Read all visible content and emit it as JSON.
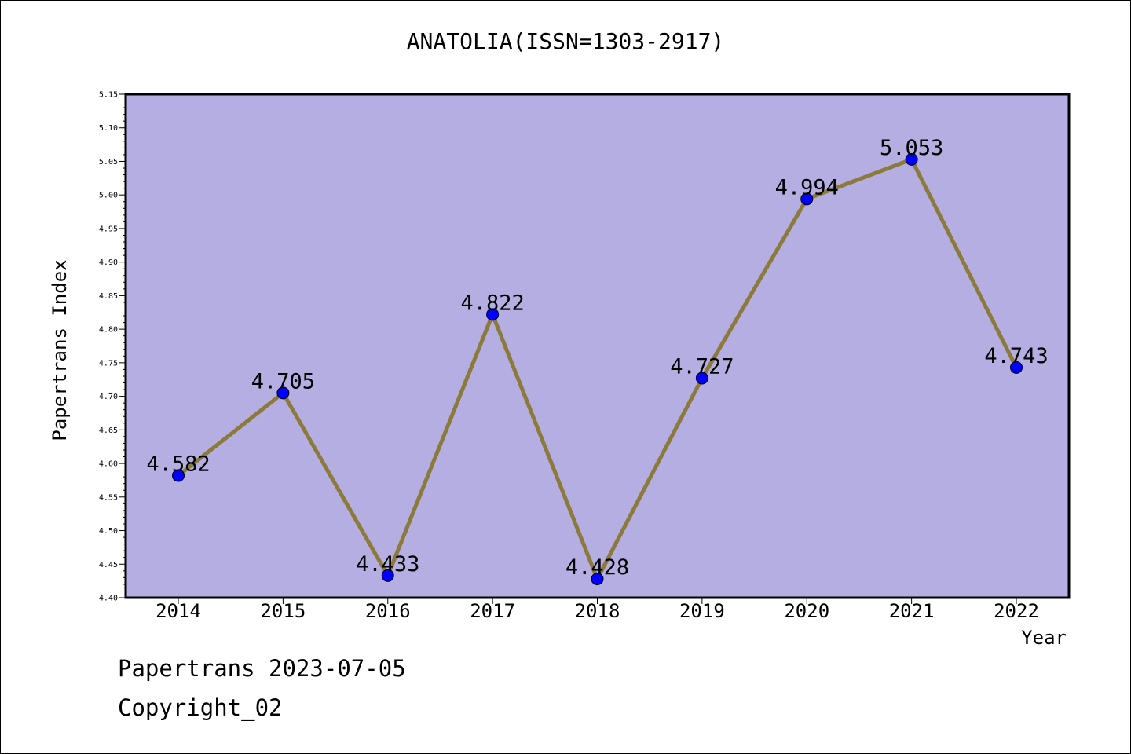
{
  "title": "ANATOLIA(ISSN=1303-2917)",
  "footer": {
    "line1": "Papertrans 2023-07-05",
    "line2": "Copyright_02"
  },
  "colors": {
    "plot_background": "#b5aee2",
    "line": "#8b7a3a",
    "marker": "#0000ff"
  },
  "chart_data": {
    "type": "line",
    "title": "ANATOLIA(ISSN=1303-2917)",
    "xlabel": "Year",
    "ylabel": "Papertrans Index",
    "categories": [
      "2014",
      "2015",
      "2016",
      "2017",
      "2018",
      "2019",
      "2020",
      "2021",
      "2022"
    ],
    "series": [
      {
        "values": [
          4.582,
          4.705,
          4.433,
          4.822,
          4.428,
          4.727,
          4.994,
          5.053,
          4.743
        ],
        "labels": [
          "4.582",
          "4.705",
          "4.433",
          "4.822",
          "4.428",
          "4.727",
          "4.994",
          "5.053",
          "4.743"
        ]
      }
    ],
    "ylim": [
      4.4,
      5.15
    ],
    "yticks": [
      "4.40",
      "4.45",
      "4.50",
      "4.55",
      "4.60",
      "4.65",
      "4.70",
      "4.75",
      "4.80",
      "4.85",
      "4.90",
      "4.95",
      "5.00",
      "5.05",
      "5.10",
      "5.15"
    ],
    "grid": false,
    "legend": "none"
  }
}
